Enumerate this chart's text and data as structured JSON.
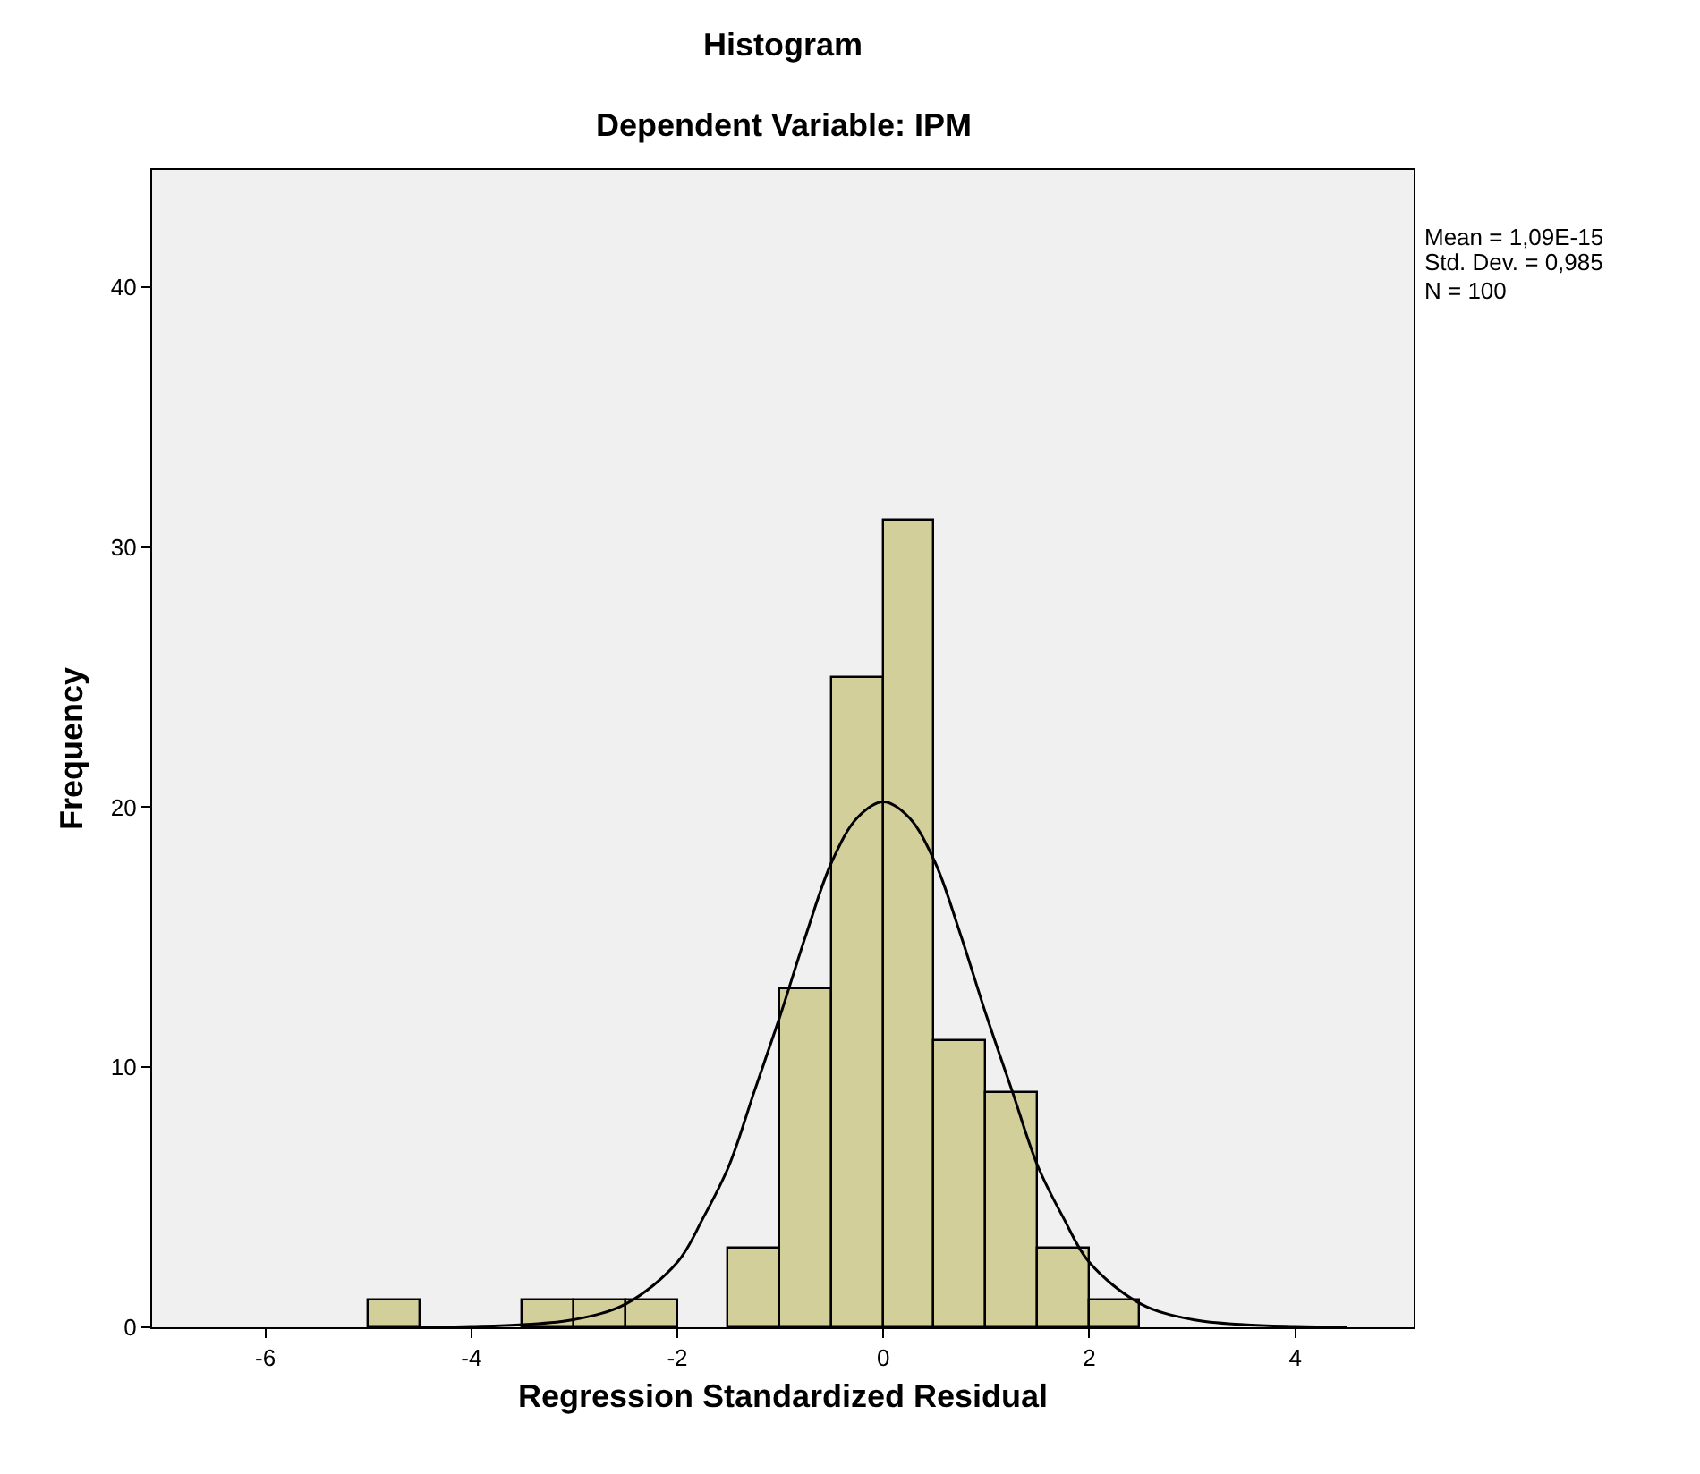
{
  "chart_data": {
    "type": "histogram",
    "title": "Histogram",
    "subtitle": "Dependent Variable: IPM",
    "xlabel": "Regression Standardized Residual",
    "ylabel": "Frequency",
    "bins": [
      -5,
      -4.5,
      -4,
      -3.5,
      -3,
      -2.5,
      -2,
      -1.5,
      -1,
      -0.5,
      0,
      0.5,
      1,
      1.5,
      2,
      2.5
    ],
    "values": [
      1,
      0,
      0,
      1,
      1,
      1,
      0,
      3,
      13,
      25,
      31,
      11,
      9,
      3,
      1
    ],
    "color": "#d3cf9b",
    "series": [
      {
        "type": "line",
        "color": "#000000",
        "x": [
          -4.5,
          -4,
          -3.5,
          -3,
          -2.5,
          -2,
          -1.75,
          -1.5,
          -1.25,
          -1,
          -0.75,
          -0.5,
          -0.25,
          0,
          0.25,
          0.5,
          0.75,
          1,
          1.25,
          1.5,
          1.75,
          2,
          2.5,
          3,
          3.5,
          4,
          4.5
        ],
        "values": [
          0,
          0.03,
          0.1,
          0.3,
          0.9,
          2.5,
          4.2,
          6.2,
          9.1,
          12,
          15.1,
          17.9,
          19.6,
          20.2,
          19.6,
          17.9,
          15.1,
          12,
          9.1,
          6.2,
          4.2,
          2.5,
          0.9,
          0.3,
          0.1,
          0.03,
          0
        ]
      }
    ],
    "xlim": [
      -7.1,
      5.15
    ],
    "xticks": [
      -6,
      -4,
      -2,
      0,
      2,
      4
    ],
    "ylim": [
      0,
      44.5
    ],
    "yticks": [
      0,
      10,
      20,
      30,
      40
    ],
    "annotations": [
      "Mean = 1,09E-15",
      "Std. Dev. = 0,985",
      "N = 100"
    ]
  }
}
